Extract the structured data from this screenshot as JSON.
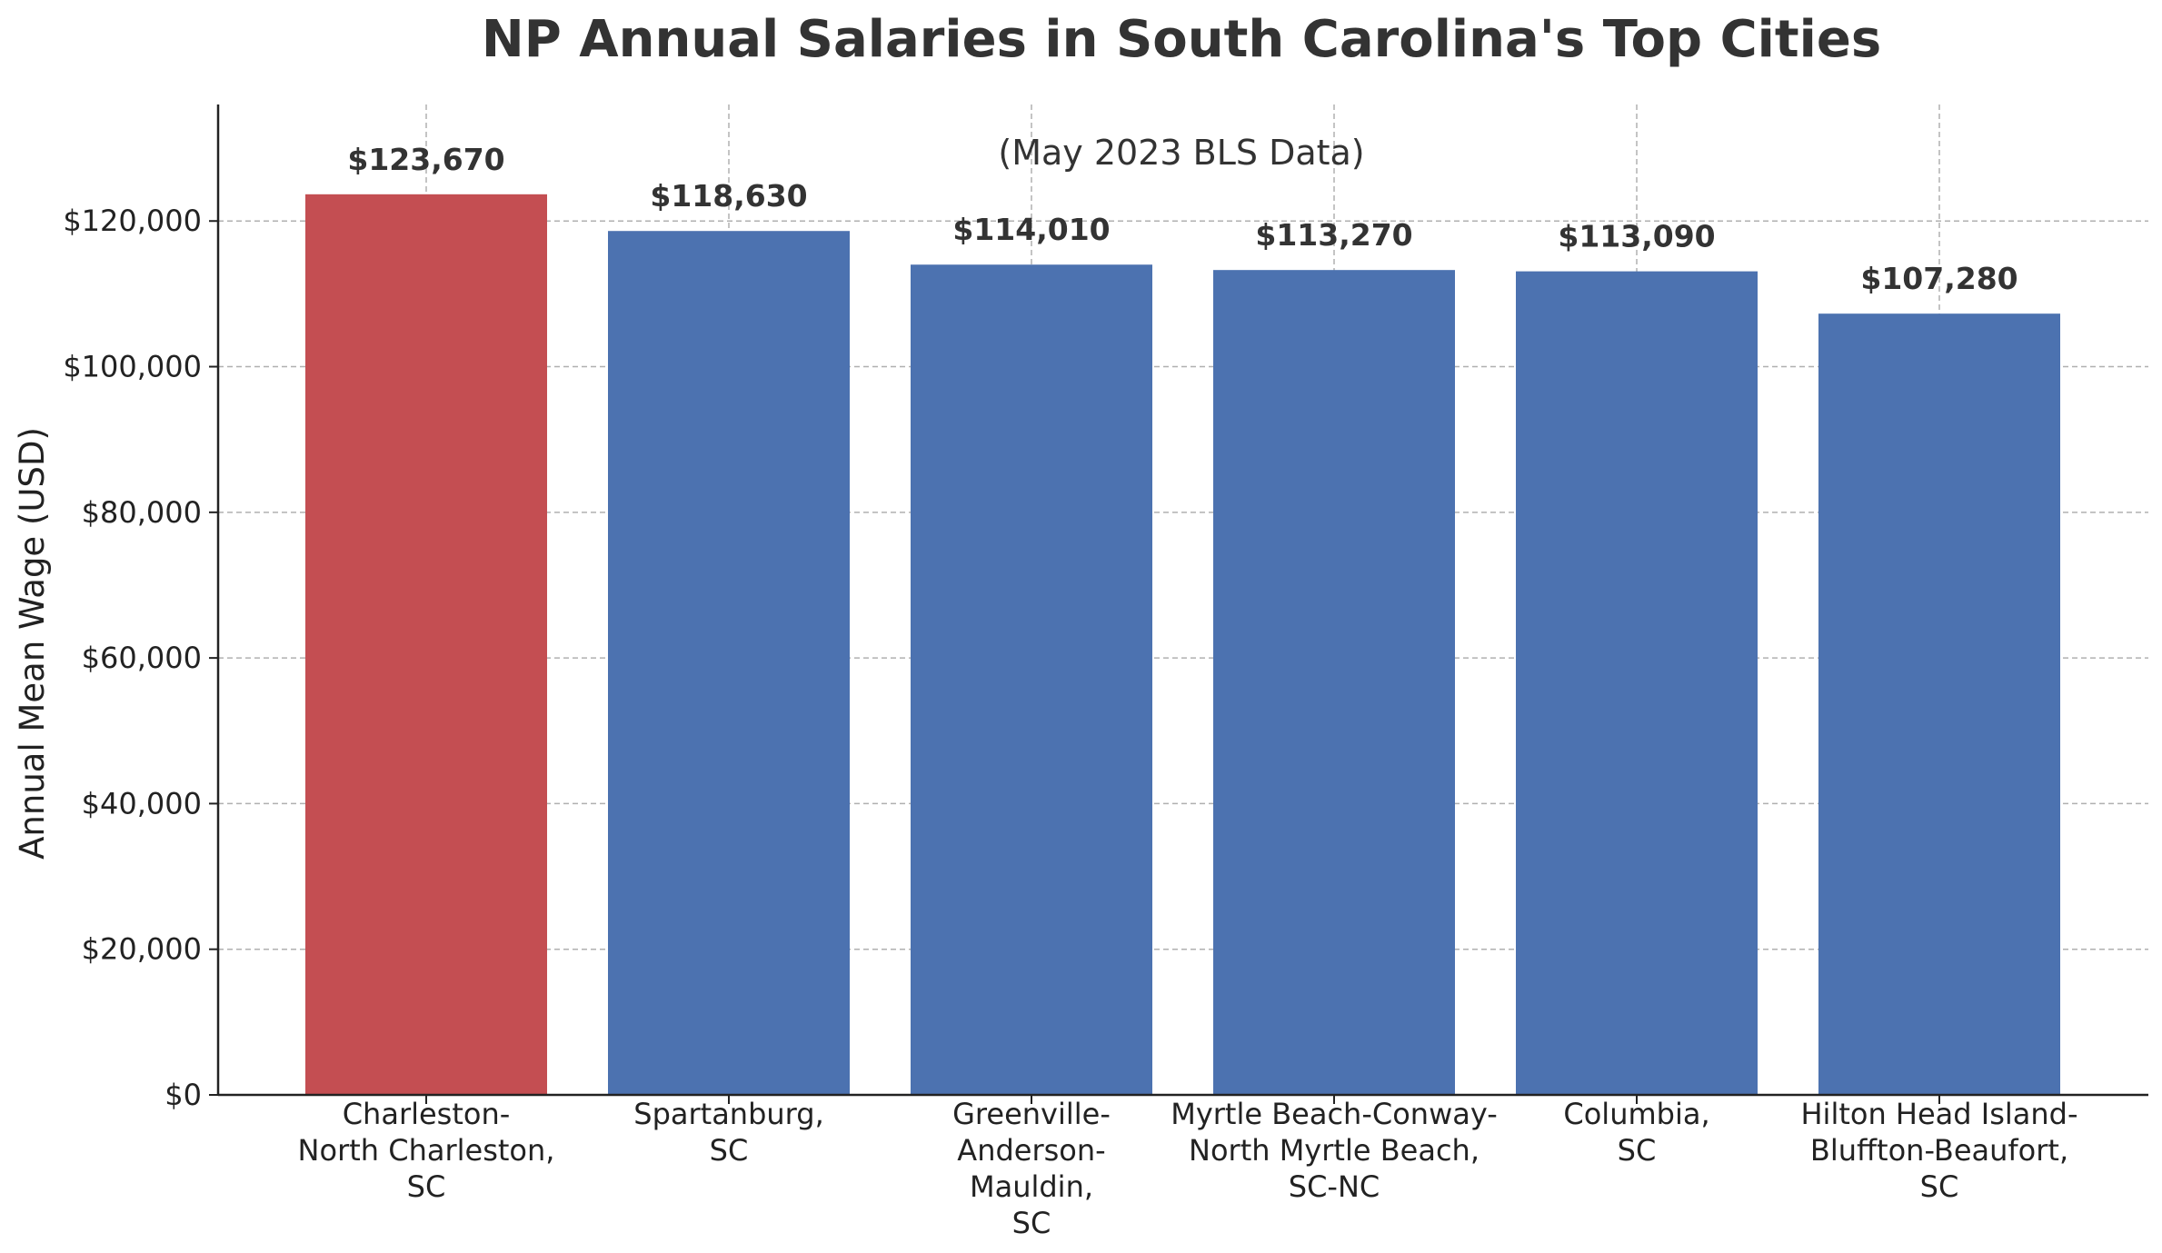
{
  "chart_data": {
    "type": "bar",
    "title": "NP Annual Salaries in South Carolina's Top Cities",
    "subtitle": "(May 2023 BLS Data)",
    "xlabel": "",
    "ylabel": "Annual Mean Wage (USD)",
    "ylim": [
      0,
      136000
    ],
    "yticks": [
      0,
      20000,
      40000,
      60000,
      80000,
      100000,
      120000
    ],
    "ytick_labels": [
      "$0",
      "$20,000",
      "$40,000",
      "$60,000",
      "$80,000",
      "$100,000",
      "$120,000"
    ],
    "grid": true,
    "categories": [
      [
        "Charleston-",
        "North Charleston,",
        "SC"
      ],
      [
        "Spartanburg,",
        "SC"
      ],
      [
        "Greenville-",
        "Anderson-",
        "Mauldin,",
        "SC"
      ],
      [
        "Myrtle Beach-Conway-",
        "North Myrtle Beach,",
        "SC-NC"
      ],
      [
        "Columbia,",
        "SC"
      ],
      [
        "Hilton Head Island-",
        "Bluffton-Beaufort,",
        "SC"
      ]
    ],
    "values": [
      123670,
      118630,
      114010,
      113270,
      113090,
      107280
    ],
    "value_labels": [
      "$123,670",
      "$118,630",
      "$114,010",
      "$113,270",
      "$113,090",
      "$107,280"
    ],
    "colors": [
      "#c44e52",
      "#4c72b0",
      "#4c72b0",
      "#4c72b0",
      "#4c72b0",
      "#4c72b0"
    ]
  }
}
